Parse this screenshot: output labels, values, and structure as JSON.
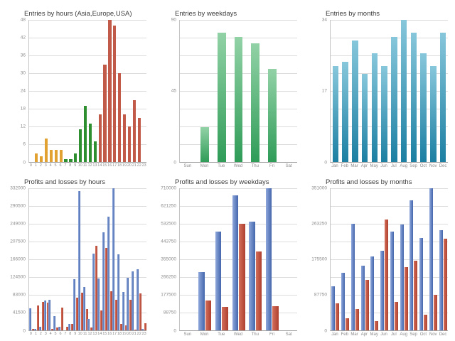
{
  "chart_data": [
    {
      "type": "bar",
      "title": "Entries by hours (Asia,Europe,USA)",
      "categories": [
        "0",
        "1",
        "2",
        "3",
        "4",
        "5",
        "6",
        "7",
        "8",
        "9",
        "10",
        "11",
        "12",
        "13",
        "14",
        "15",
        "16",
        "17",
        "18",
        "19",
        "20",
        "21",
        "22",
        "23"
      ],
      "values": [
        0,
        3,
        2,
        8,
        4,
        4,
        4,
        1,
        1,
        3,
        11,
        19,
        13,
        7,
        16,
        33,
        48,
        46,
        30,
        16,
        12,
        21,
        15,
        0
      ],
      "bar_groups": [
        "asia",
        "asia",
        "asia",
        "asia",
        "asia",
        "asia",
        "asia",
        "europe",
        "europe",
        "europe",
        "europe",
        "europe",
        "europe",
        "europe",
        "usa",
        "usa",
        "usa",
        "usa",
        "usa",
        "usa",
        "usa",
        "usa",
        "usa",
        "usa"
      ],
      "palette": {
        "asia": "#E2A231",
        "europe": "#2E8F31",
        "usa": "#C15A49"
      },
      "ylim": [
        0,
        48
      ],
      "yticks": [
        0,
        6,
        12,
        18,
        24,
        30,
        36,
        42,
        48
      ],
      "grid_intervals": 8,
      "grid": true,
      "legend_position": "none",
      "xlabel": "",
      "ylabel": ""
    },
    {
      "type": "bar",
      "title": "Entries by weekdays",
      "categories": [
        "Sun",
        "Mon",
        "Tue",
        "Wed",
        "Thu",
        "Fri",
        "Sat"
      ],
      "values": [
        0,
        22,
        82,
        79,
        75,
        59,
        0
      ],
      "gradient": [
        "#92D2A6",
        "#2F9C58"
      ],
      "ylim": [
        0,
        90
      ],
      "yticks": [
        0,
        45,
        90
      ],
      "grid_intervals": 8,
      "grid": true,
      "legend_position": "none",
      "xlabel": "",
      "ylabel": ""
    },
    {
      "type": "bar",
      "title": "Entries by months",
      "categories": [
        "Jan",
        "Feb",
        "Mar",
        "Apr",
        "May",
        "Jun",
        "Jul",
        "Aug",
        "Sep",
        "Oct",
        "Nov",
        "Dec"
      ],
      "values": [
        23,
        24,
        29,
        21,
        26,
        23,
        30,
        34,
        31,
        26,
        23,
        31
      ],
      "gradient": [
        "#87C7DB",
        "#1C7FA2"
      ],
      "ylim": [
        0,
        34
      ],
      "yticks": [
        0,
        17,
        34
      ],
      "grid_intervals": 8,
      "grid": true,
      "legend_position": "none",
      "xlabel": "",
      "ylabel": ""
    },
    {
      "type": "bar",
      "title": "Profits and losses by hours",
      "categories": [
        "0",
        "1",
        "2",
        "3",
        "4",
        "5",
        "6",
        "7",
        "8",
        "9",
        "10",
        "11",
        "12",
        "13",
        "14",
        "15",
        "16",
        "17",
        "18",
        "19",
        "20",
        "21",
        "22",
        "23"
      ],
      "series": [
        {
          "name": "profits",
          "gradient": [
            "#8FA8DC",
            "#4466AC"
          ],
          "values": [
            52000,
            3000,
            8000,
            69000,
            72000,
            33000,
            8000,
            0,
            15000,
            120000,
            326000,
            101000,
            27000,
            179000,
            122000,
            229000,
            265000,
            332000,
            178000,
            90000,
            123000,
            138000,
            143000,
            3000
          ]
        },
        {
          "name": "losses",
          "gradient": [
            "#D4705C",
            "#AE3F2F"
          ],
          "values": [
            4000,
            58000,
            67000,
            65000,
            4000,
            6000,
            53000,
            8000,
            15000,
            76000,
            88000,
            50000,
            6000,
            197000,
            47000,
            193000,
            92000,
            72000,
            15000,
            12000,
            71000,
            2000,
            87000,
            17000
          ]
        }
      ],
      "ylim": [
        0,
        332000
      ],
      "yticks": [
        0,
        41500,
        83000,
        124500,
        166000,
        207500,
        249000,
        290500,
        332000
      ],
      "grid_intervals": 8,
      "grid": true,
      "legend_position": "none",
      "xlabel": "",
      "ylabel": ""
    },
    {
      "type": "bar",
      "title": "Profits and losses by weekdays",
      "categories": [
        "Sun",
        "Mon",
        "Tue",
        "Wed",
        "Thu",
        "Fri",
        "Sat"
      ],
      "series": [
        {
          "name": "profits",
          "gradient": [
            "#8FA8DC",
            "#4466AC"
          ],
          "values": [
            0,
            290000,
            495000,
            673000,
            542000,
            710000,
            0
          ]
        },
        {
          "name": "losses",
          "gradient": [
            "#D4705C",
            "#AE3F2F"
          ],
          "values": [
            0,
            150000,
            118000,
            532000,
            394000,
            122000,
            0
          ]
        }
      ],
      "ylim": [
        0,
        710000
      ],
      "yticks": [
        0,
        88750,
        177500,
        266250,
        355000,
        443750,
        532500,
        621250,
        710000
      ],
      "grid_intervals": 8,
      "grid": true,
      "legend_position": "none",
      "xlabel": "",
      "ylabel": ""
    },
    {
      "type": "bar",
      "title": "Profits and losses by months",
      "categories": [
        "Jan",
        "Feb",
        "Mar",
        "Apr",
        "May",
        "Jun",
        "Jul",
        "Aug",
        "Sep",
        "Oct",
        "Nov",
        "Dec"
      ],
      "series": [
        {
          "name": "profits",
          "gradient": [
            "#8FA8DC",
            "#4466AC"
          ],
          "values": [
            109000,
            143000,
            264000,
            160000,
            182000,
            196000,
            244000,
            261000,
            322000,
            229000,
            351000,
            247000
          ]
        },
        {
          "name": "losses",
          "gradient": [
            "#D4705C",
            "#AE3F2F"
          ],
          "values": [
            67000,
            29000,
            52000,
            124000,
            22000,
            274000,
            71000,
            157000,
            172000,
            39000,
            87000,
            226000
          ]
        }
      ],
      "ylim": [
        0,
        351000
      ],
      "yticks": [
        0,
        87750,
        175500,
        263250,
        351000
      ],
      "grid_intervals": 8,
      "grid": true,
      "legend_position": "none",
      "xlabel": "",
      "ylabel": ""
    }
  ],
  "colors": {
    "background": "#FFFFFF",
    "title_text": "#3C3C3C",
    "axis_text": "#8A8A8A",
    "gridline": "#DCDCDC",
    "baseline": "#A0A0A0"
  }
}
